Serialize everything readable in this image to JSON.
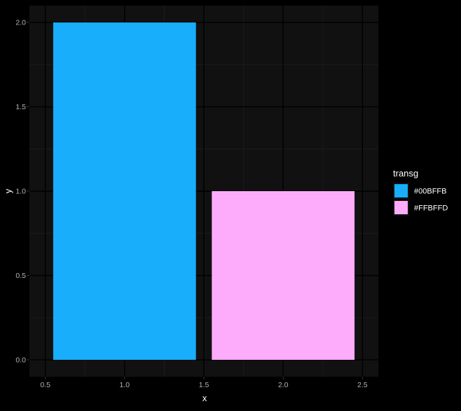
{
  "chart_data": {
    "type": "bar",
    "x": [
      1.0,
      2.0
    ],
    "values": [
      2.0,
      1.0
    ],
    "fill": [
      "#00BFFB",
      "#FFBFFD"
    ],
    "bar_width": 0.9,
    "xlabel": "x",
    "ylabel": "y",
    "xlim": [
      0.5,
      2.5
    ],
    "ylim": [
      0.0,
      2.0
    ],
    "x_ticks": [
      0.5,
      1.0,
      1.5,
      2.0,
      2.5
    ],
    "x_tick_labels": [
      "0.5",
      "1.0",
      "1.5",
      "2.0",
      "2.5"
    ],
    "y_ticks": [
      0.0,
      0.5,
      1.0,
      1.5,
      2.0
    ],
    "y_tick_labels": [
      "0.0",
      "0.5",
      "1.0",
      "1.5",
      "2.0"
    ],
    "grid": true,
    "legend": {
      "title": "transg",
      "position": "right",
      "entries": [
        {
          "label": "#00BFFB",
          "color": "#00BFFB"
        },
        {
          "label": "#FFBFFD",
          "color": "#FFBFFD"
        }
      ]
    }
  },
  "theme": {
    "background": "#000000",
    "panel": "#111111",
    "grid_major": "#000000",
    "grid_minor": "#1c1c1c",
    "rendered_bar_colors": [
      "#18AEFB",
      "#FDACFC"
    ]
  }
}
